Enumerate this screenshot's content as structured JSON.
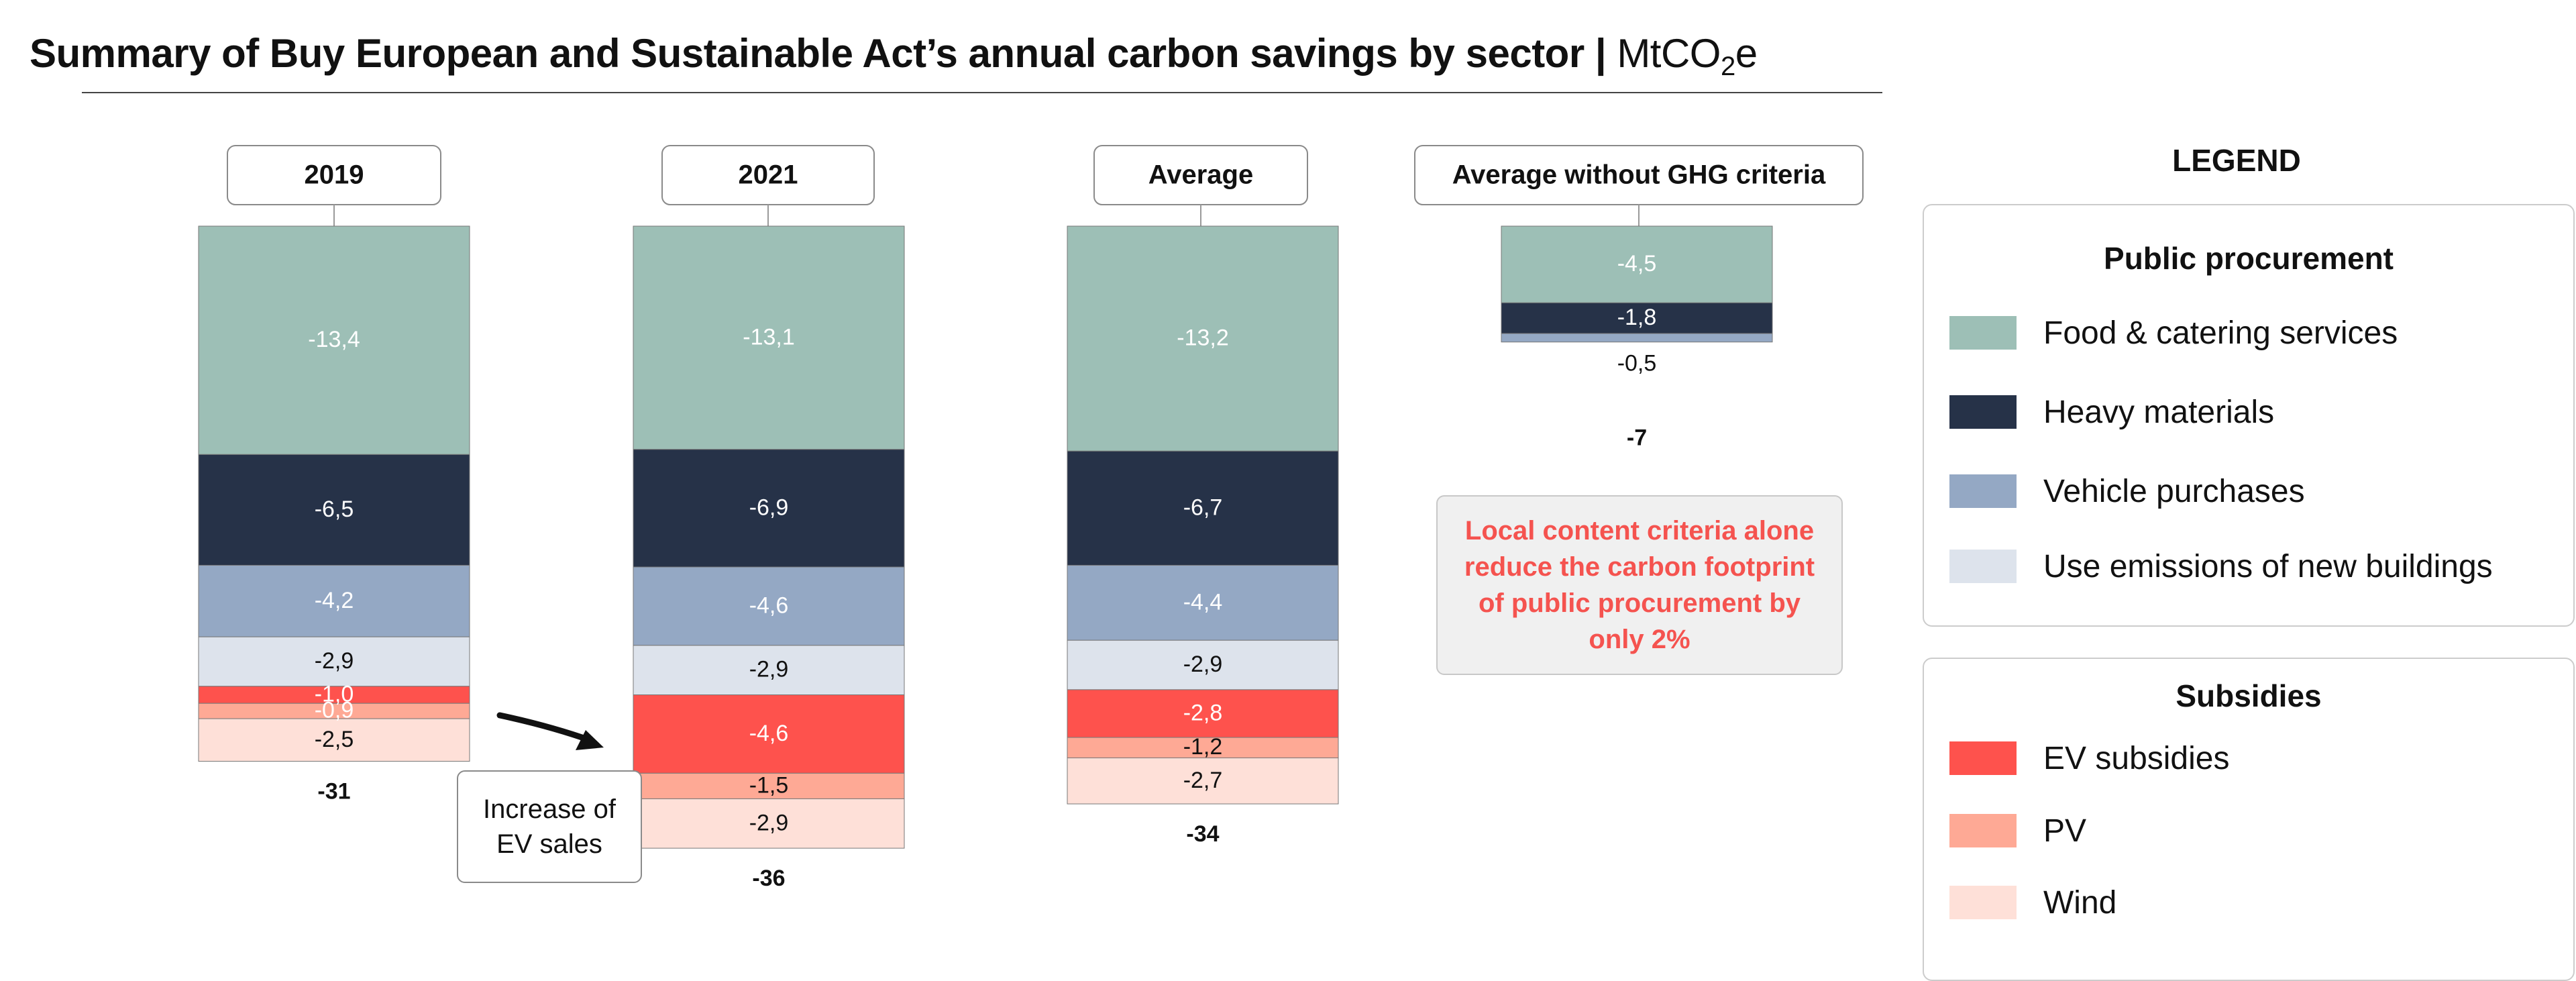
{
  "title": {
    "main": "Summary of Buy European and Sustainable Act’s annual carbon savings by sector |",
    "unit_prefix": "MtCO",
    "unit_sub": "2",
    "unit_suffix": "e"
  },
  "colors": {
    "food": "#9dbfb6",
    "heavy": "#263248",
    "vehicle": "#94a8c4",
    "buildings": "#dde3ec",
    "ev": "#fe524d",
    "pv": "#fea995",
    "wind": "#fee0d8"
  },
  "chart_data": {
    "type": "bar",
    "stacked": true,
    "categories": [
      "2019",
      "2021",
      "Average",
      "Average without GHG criteria"
    ],
    "series": [
      {
        "name": "Food & catering services",
        "key": "food",
        "values": [
          -13.4,
          -13.1,
          -13.2,
          -4.5
        ],
        "labels": [
          "-13,4",
          "-13,1",
          "-13,2",
          "-4,5"
        ]
      },
      {
        "name": "Heavy materials",
        "key": "heavy",
        "values": [
          -6.5,
          -6.9,
          -6.7,
          -1.8
        ],
        "labels": [
          "-6,5",
          "-6,9",
          "-6,7",
          "-1,8"
        ]
      },
      {
        "name": "Vehicle purchases",
        "key": "vehicle",
        "values": [
          -4.2,
          -4.6,
          -4.4,
          -0.5
        ],
        "labels": [
          "-4,2",
          "-4,6",
          "-4,4",
          "-0,5"
        ]
      },
      {
        "name": "Use emissions of new buildings",
        "key": "buildings",
        "values": [
          -2.9,
          -2.9,
          -2.9,
          null
        ],
        "labels": [
          "-2,9",
          "-2,9",
          "-2,9",
          ""
        ]
      },
      {
        "name": "EV subsidies",
        "key": "ev",
        "values": [
          -1.0,
          -4.6,
          -2.8,
          null
        ],
        "labels": [
          "-1,0",
          "-4,6",
          "-2,8",
          ""
        ]
      },
      {
        "name": "PV",
        "key": "pv",
        "values": [
          -0.9,
          -1.5,
          -1.2,
          null
        ],
        "labels": [
          "-0,9",
          "-1,5",
          "-1,2",
          ""
        ]
      },
      {
        "name": "Wind",
        "key": "wind",
        "values": [
          -2.5,
          -2.9,
          -2.7,
          null
        ],
        "labels": [
          "-2,5",
          "-2,9",
          "-2,7",
          ""
        ]
      }
    ],
    "totals": [
      "-31",
      "-36",
      "-34",
      "-7"
    ]
  },
  "callout": "Local content criteria alone reduce the carbon footprint of public procurement by only 2%",
  "ev_note": "Increase of EV sales",
  "legend": {
    "title": "LEGEND",
    "groups": [
      {
        "title": "Public procurement",
        "items": [
          {
            "label": "Food & catering services",
            "key": "food"
          },
          {
            "label": "Heavy materials",
            "key": "heavy"
          },
          {
            "label": "Vehicle purchases",
            "key": "vehicle"
          },
          {
            "label": "Use emissions of new buildings",
            "key": "buildings"
          }
        ]
      },
      {
        "title": "Subsidies",
        "items": [
          {
            "label": "EV subsidies",
            "key": "ev"
          },
          {
            "label": "PV",
            "key": "pv"
          },
          {
            "label": "Wind",
            "key": "wind"
          }
        ]
      }
    ]
  }
}
